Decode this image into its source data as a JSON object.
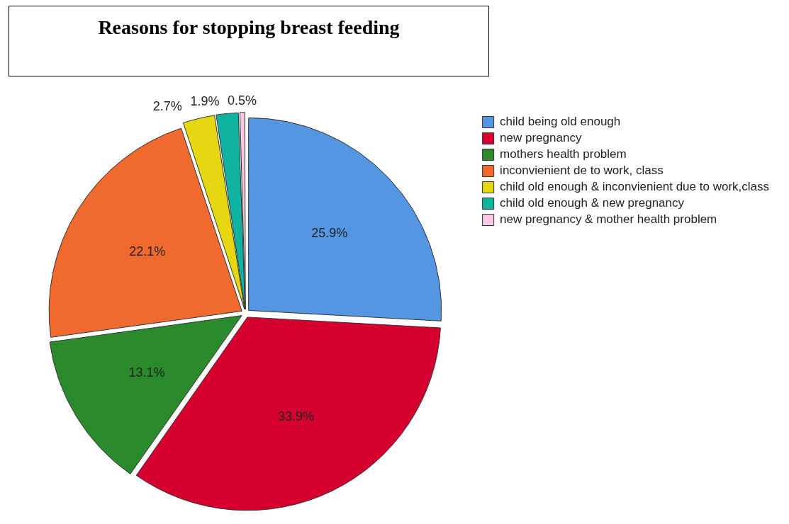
{
  "chart_data": {
    "type": "pie",
    "title": "Reasons for stopping breast feeding",
    "categories": [
      "child being old enough",
      "new pregnancy",
      "mothers health problem",
      "inconvienient de to work, class",
      "child old enough & inconvienient due to work,class",
      "child old enough & new pregnancy",
      "new pregnancy & mother health problem"
    ],
    "values": [
      25.9,
      33.9,
      13.1,
      22.1,
      2.7,
      1.9,
      0.5
    ],
    "colors": [
      "#5596e3",
      "#d6002f",
      "#2b8a2b",
      "#f0692f",
      "#e5d813",
      "#10b3a0",
      "#fbc9e4"
    ],
    "value_labels": [
      "25.9%",
      "33.9%",
      "13.1%",
      "22.1%",
      "2.7%",
      "1.9%",
      "0.5%"
    ],
    "legend": "top right"
  }
}
